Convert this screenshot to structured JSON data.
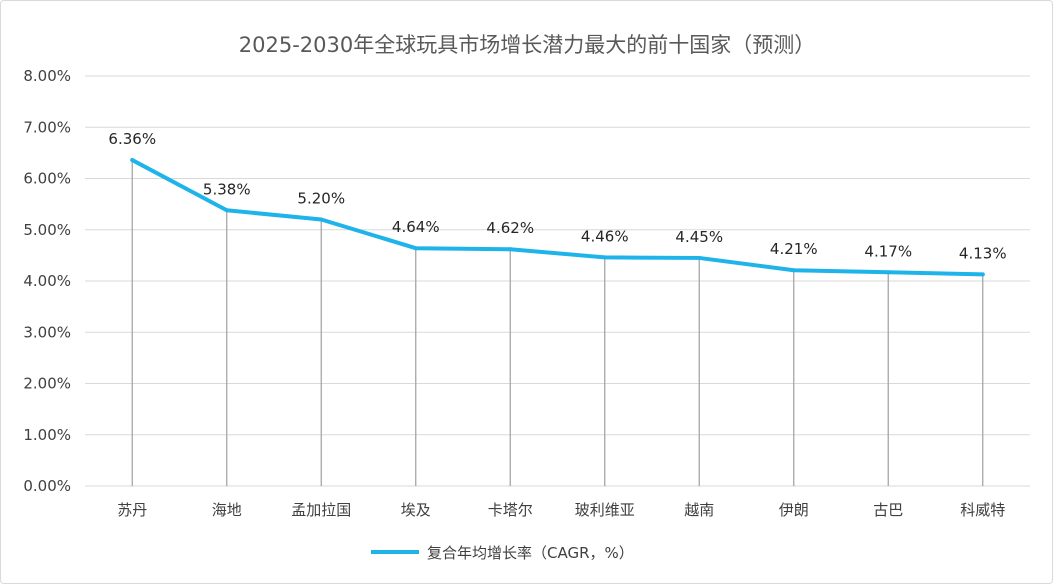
{
  "chart_data": {
    "type": "line",
    "title": "2025-2030年全球玩具市场增长潜力最大的前十国家（预测）",
    "categories": [
      "苏丹",
      "海地",
      "孟加拉国",
      "埃及",
      "卡塔尔",
      "玻利维亚",
      "越南",
      "伊朗",
      "古巴",
      "科威特"
    ],
    "series": [
      {
        "name": "复合年均增长率（CAGR，%）",
        "values": [
          6.36,
          5.38,
          5.2,
          4.64,
          4.62,
          4.46,
          4.45,
          4.21,
          4.17,
          4.13
        ],
        "data_labels": [
          "6.36%",
          "5.38%",
          "5.20%",
          "4.64%",
          "4.62%",
          "4.46%",
          "4.45%",
          "4.21%",
          "4.17%",
          "4.13%"
        ],
        "color": "#1eb4ea"
      }
    ],
    "y_ticks": [
      "0.00%",
      "1.00%",
      "2.00%",
      "3.00%",
      "4.00%",
      "5.00%",
      "6.00%",
      "7.00%",
      "8.00%"
    ],
    "ylim": [
      0,
      8
    ],
    "drop_lines": true,
    "grid": true,
    "legend": "bottom-center",
    "xlabel": "",
    "ylabel": "",
    "colors": {
      "gridline": "#d9d9d9",
      "dropline": "#a6a6a6",
      "axis_text": "#404040",
      "title": "#595959"
    }
  }
}
